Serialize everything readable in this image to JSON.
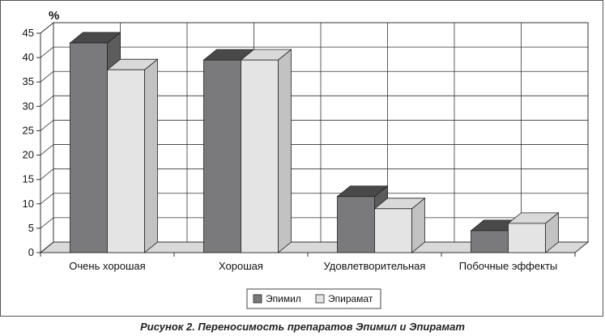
{
  "chart_data": {
    "type": "bar",
    "ylabel": "%",
    "ylim": [
      0,
      45
    ],
    "yticks": [
      0,
      5,
      10,
      15,
      20,
      25,
      30,
      35,
      40,
      45
    ],
    "categories": [
      "Очень хорошая",
      "Хорошая",
      "Удовлетворительная",
      "Побочные эффекты"
    ],
    "series": [
      {
        "name": "Эпимил",
        "values": [
          43,
          39.5,
          11.5,
          4.5
        ],
        "color": "#7a7a7c"
      },
      {
        "name": "Эпирамат",
        "values": [
          37.5,
          39.5,
          9,
          6
        ],
        "color": "#e4e4e4"
      }
    ],
    "grid": true,
    "style": "3d",
    "legend": "bottom-right"
  },
  "caption": "Рисунок 2. Переносимость препаратов Эпимил и Эпирамат"
}
